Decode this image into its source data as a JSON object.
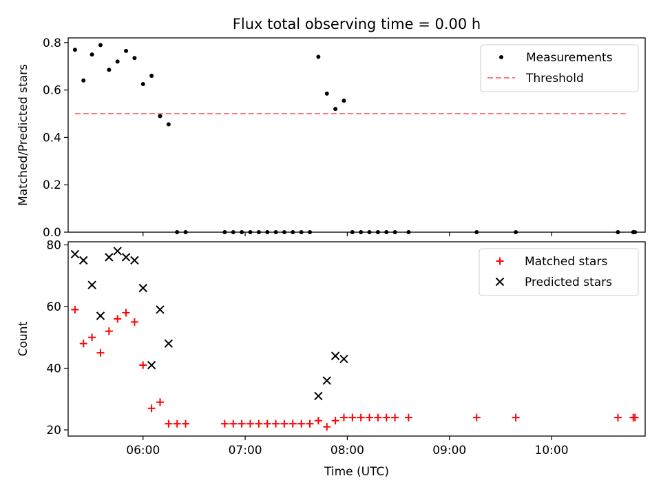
{
  "chart_data": [
    {
      "type": "scatter",
      "title": "Flux total observing time = 0.00 h",
      "xlabel": "",
      "ylabel": "Matched/Predicted stars",
      "ylim": [
        0,
        0.82
      ],
      "xlim": [
        "05:16",
        "10:55"
      ],
      "yticks": [
        "0.0",
        "0.2",
        "0.4",
        "0.6",
        "0.8"
      ],
      "xticks": [
        "06:00",
        "07:00",
        "08:00",
        "09:00",
        "10:00"
      ],
      "legend": "top-right",
      "series": [
        {
          "name": "Measurements",
          "color": "#000000",
          "marker": "dot",
          "x": [
            "05:20",
            "05:25",
            "05:30",
            "05:35",
            "05:40",
            "05:45",
            "05:50",
            "05:55",
            "06:00",
            "06:05",
            "06:10",
            "06:15",
            "06:20",
            "06:25",
            "06:48",
            "06:53",
            "06:58",
            "07:03",
            "07:08",
            "07:13",
            "07:18",
            "07:23",
            "07:28",
            "07:33",
            "07:38",
            "07:43",
            "07:48",
            "07:53",
            "07:58",
            "08:03",
            "08:08",
            "08:13",
            "08:18",
            "08:23",
            "08:28",
            "08:36",
            "09:16",
            "09:39",
            "10:39",
            "10:48",
            "10:49"
          ],
          "y": [
            0.77,
            0.64,
            0.75,
            0.79,
            0.685,
            0.72,
            0.765,
            0.735,
            0.625,
            0.66,
            0.49,
            0.455,
            0,
            0,
            0,
            0,
            0,
            0,
            0,
            0,
            0,
            0,
            0,
            0,
            0,
            0.74,
            0.585,
            0.52,
            0.555,
            0,
            0,
            0,
            0,
            0,
            0,
            0,
            0,
            0,
            0,
            0,
            0
          ]
        },
        {
          "name": "Threshold",
          "color": "#ff7a7a",
          "style": "dashed",
          "x": [
            "05:20",
            "10:44"
          ],
          "y": [
            0.5,
            0.5
          ]
        }
      ]
    },
    {
      "type": "scatter",
      "title": "",
      "xlabel": "Time (UTC)",
      "ylabel": "Count",
      "ylim": [
        18,
        81
      ],
      "xlim": [
        "05:16",
        "10:55"
      ],
      "yticks": [
        "20",
        "40",
        "60",
        "80"
      ],
      "xticks": [
        "06:00",
        "07:00",
        "08:00",
        "09:00",
        "10:00"
      ],
      "legend": "top-right",
      "series": [
        {
          "name": "Matched stars",
          "color": "#ff0000",
          "marker": "plus",
          "x": [
            "05:20",
            "05:25",
            "05:30",
            "05:35",
            "05:40",
            "05:45",
            "05:50",
            "05:55",
            "06:00",
            "06:05",
            "06:10",
            "06:15",
            "06:20",
            "06:25",
            "06:48",
            "06:53",
            "06:58",
            "07:03",
            "07:08",
            "07:13",
            "07:18",
            "07:23",
            "07:28",
            "07:33",
            "07:38",
            "07:43",
            "07:48",
            "07:53",
            "07:58",
            "08:03",
            "08:08",
            "08:13",
            "08:18",
            "08:23",
            "08:28",
            "08:36",
            "09:16",
            "09:39",
            "10:39",
            "10:48",
            "10:49"
          ],
          "y": [
            59,
            48,
            50,
            45,
            52,
            56,
            58,
            55,
            41,
            27,
            29,
            22,
            22,
            22,
            22,
            22,
            22,
            22,
            22,
            22,
            22,
            22,
            22,
            22,
            22,
            23,
            21,
            23,
            24,
            24,
            24,
            24,
            24,
            24,
            24,
            24,
            24,
            24,
            24,
            24,
            24
          ]
        },
        {
          "name": "Predicted stars",
          "color": "#000000",
          "marker": "x",
          "x": [
            "05:20",
            "05:25",
            "05:30",
            "05:35",
            "05:40",
            "05:45",
            "05:50",
            "05:55",
            "06:00",
            "06:05",
            "06:10",
            "06:15",
            "07:43",
            "07:48",
            "07:53",
            "07:58"
          ],
          "y": [
            77,
            75,
            67,
            57,
            76,
            78,
            76,
            75,
            66,
            41,
            59,
            48,
            31,
            36,
            44,
            43
          ]
        }
      ]
    }
  ]
}
